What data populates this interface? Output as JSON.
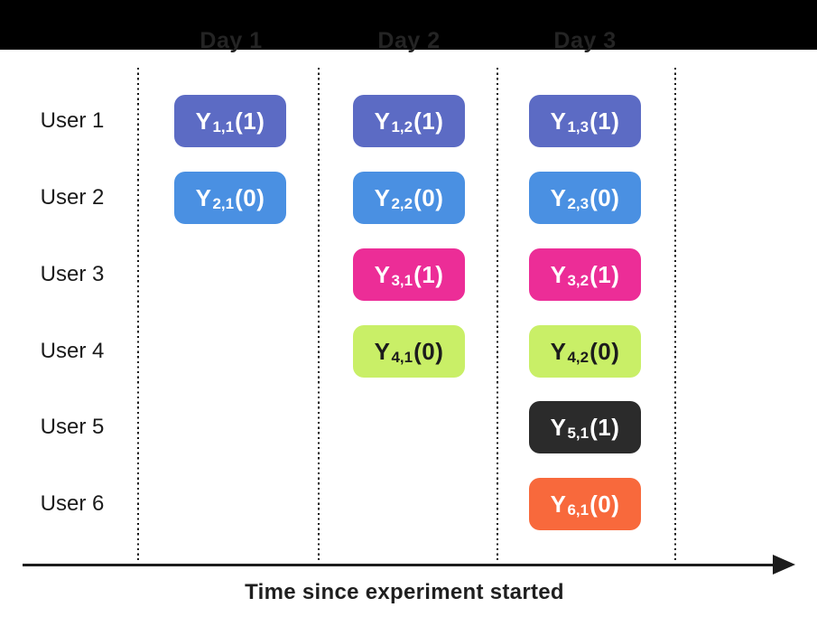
{
  "header": {
    "bar_color": "#000000",
    "label_color": "#242424",
    "days": [
      "Day 1",
      "Day 2",
      "Day 3"
    ]
  },
  "users": [
    "User 1",
    "User 2",
    "User 3",
    "User 4",
    "User 5",
    "User 6"
  ],
  "user_colors": {
    "1": {
      "fill": "#5C6BC4",
      "text": "#FFFFFF"
    },
    "2": {
      "fill": "#4A90E2",
      "text": "#FFFFFF"
    },
    "3": {
      "fill": "#EC2D97",
      "text": "#FFFFFF"
    },
    "4": {
      "fill": "#C9EF67",
      "text": "#1C1C1C"
    },
    "5": {
      "fill": "#2B2B2B",
      "text": "#FFFFFF"
    },
    "6": {
      "fill": "#F8693C",
      "text": "#FFFFFF"
    }
  },
  "cells": [
    {
      "user": 1,
      "day": 1,
      "base": "Y",
      "sub": "1,1",
      "arg": "(1)"
    },
    {
      "user": 1,
      "day": 2,
      "base": "Y",
      "sub": "1,2",
      "arg": "(1)"
    },
    {
      "user": 1,
      "day": 3,
      "base": "Y",
      "sub": "1,3",
      "arg": "(1)"
    },
    {
      "user": 2,
      "day": 1,
      "base": "Y",
      "sub": "2,1",
      "arg": "(0)"
    },
    {
      "user": 2,
      "day": 2,
      "base": "Y",
      "sub": "2,2",
      "arg": "(0)"
    },
    {
      "user": 2,
      "day": 3,
      "base": "Y",
      "sub": "2,3",
      "arg": "(0)"
    },
    {
      "user": 3,
      "day": 2,
      "base": "Y",
      "sub": "3,1",
      "arg": "(1)"
    },
    {
      "user": 3,
      "day": 3,
      "base": "Y",
      "sub": "3,2",
      "arg": "(1)"
    },
    {
      "user": 4,
      "day": 2,
      "base": "Y",
      "sub": "4,1",
      "arg": "(0)"
    },
    {
      "user": 4,
      "day": 3,
      "base": "Y",
      "sub": "4,2",
      "arg": "(0)"
    },
    {
      "user": 5,
      "day": 3,
      "base": "Y",
      "sub": "5,1",
      "arg": "(1)"
    },
    {
      "user": 6,
      "day": 3,
      "base": "Y",
      "sub": "6,1",
      "arg": "(0)"
    }
  ],
  "axis": {
    "title": "Time since experiment started",
    "line_color": "#1C1C1C"
  },
  "gridline_color": "#151515"
}
